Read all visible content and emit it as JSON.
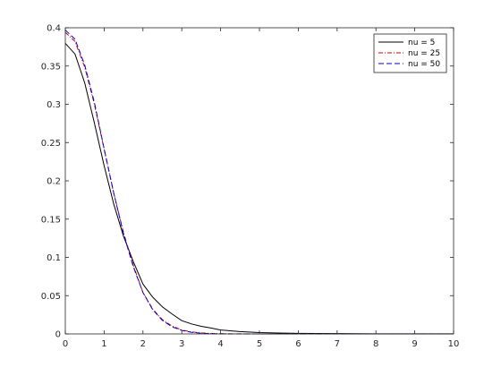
{
  "chart_data": {
    "type": "line",
    "title": "",
    "xlabel": "",
    "ylabel": "",
    "xlim": [
      0,
      10
    ],
    "ylim": [
      0,
      0.4
    ],
    "xticks": [
      0,
      1,
      2,
      3,
      4,
      5,
      6,
      7,
      8,
      9,
      10
    ],
    "yticks": [
      0,
      0.05,
      0.1,
      0.15,
      0.2,
      0.25,
      0.3,
      0.35,
      0.4
    ],
    "xtick_labels": [
      "0",
      "1",
      "2",
      "3",
      "4",
      "5",
      "6",
      "7",
      "8",
      "9",
      "10"
    ],
    "ytick_labels": [
      "0",
      "0.05",
      "0.1",
      "0.15",
      "0.2",
      "0.25",
      "0.3",
      "0.35",
      "0.4"
    ],
    "grid": false,
    "legend_position": "top-right",
    "x": [
      0,
      0.25,
      0.5,
      0.75,
      1,
      1.25,
      1.5,
      1.75,
      2,
      2.25,
      2.5,
      2.75,
      3,
      3.25,
      3.5,
      3.75,
      4,
      4.5,
      5,
      5.5,
      6,
      7,
      8,
      9,
      10
    ],
    "series": [
      {
        "name": "nu = 5",
        "color": "#000000",
        "dash": "solid",
        "values": [
          0.3796,
          0.3657,
          0.3279,
          0.2753,
          0.2197,
          0.1692,
          0.1274,
          0.0947,
          0.0651,
          0.0481,
          0.0354,
          0.026,
          0.0173,
          0.0131,
          0.01,
          0.0077,
          0.0051,
          0.0031,
          0.0018,
          0.0012,
          0.0008,
          0.0004,
          0.0002,
          0.0001,
          0.0001
        ]
      },
      {
        "name": "nu = 25",
        "color": "#cc0000",
        "dash": "dashdot",
        "values": [
          0.394,
          0.3821,
          0.3485,
          0.2998,
          0.2413,
          0.1835,
          0.1321,
          0.09,
          0.0541,
          0.0325,
          0.0187,
          0.0103,
          0.0051,
          0.0026,
          0.0013,
          0.0006,
          0.0003,
          0.0001,
          0.0,
          0.0,
          0.0,
          0.0,
          0.0,
          0.0,
          0.0
        ]
      },
      {
        "name": "nu = 50",
        "color": "#0000cc",
        "dash": "dashed",
        "values": [
          0.397,
          0.385,
          0.3513,
          0.3022,
          0.242,
          0.1834,
          0.1308,
          0.088,
          0.054,
          0.0318,
          0.0177,
          0.0093,
          0.0046,
          0.0021,
          0.0009,
          0.0004,
          0.0001,
          0.0,
          0.0,
          0.0,
          0.0,
          0.0,
          0.0,
          0.0,
          0.0
        ]
      }
    ]
  }
}
